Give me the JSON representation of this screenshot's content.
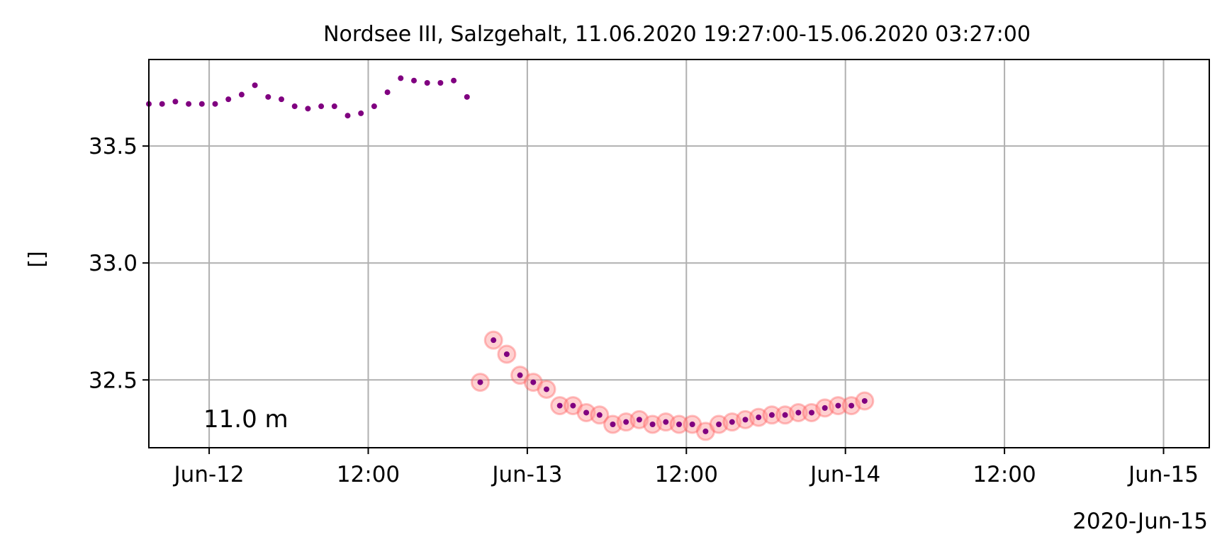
{
  "chart_data": {
    "type": "scatter",
    "title": "Nordsee III, Salzgehalt, 11.06.2020 19:27:00-15.06.2020 03:27:00",
    "ylabel": "[]",
    "xlabel": "",
    "annotation": "11.0 m",
    "x_offset_label": "2020-Jun-15",
    "xlim": [
      "2020-06-11 19:27",
      "2020-06-15 03:27"
    ],
    "ylim": [
      32.21,
      33.87
    ],
    "grid": true,
    "x_ticks": [
      {
        "t": "2020-06-12 00:00",
        "label": "Jun-12"
      },
      {
        "t": "2020-06-12 12:00",
        "label": "12:00"
      },
      {
        "t": "2020-06-13 00:00",
        "label": "Jun-13"
      },
      {
        "t": "2020-06-13 12:00",
        "label": "12:00"
      },
      {
        "t": "2020-06-14 00:00",
        "label": "Jun-14"
      },
      {
        "t": "2020-06-14 12:00",
        "label": "12:00"
      },
      {
        "t": "2020-06-15 00:00",
        "label": "Jun-15"
      }
    ],
    "y_ticks": [
      {
        "v": 32.5,
        "label": "32.5"
      },
      {
        "v": 33.0,
        "label": "33.0"
      },
      {
        "v": 33.5,
        "label": "33.5"
      }
    ],
    "colors": {
      "points": "#800080",
      "flag_fill": "#ff9999",
      "flag_stroke": "#ff4d4d",
      "grid": "#b0b0b0"
    },
    "series": [
      {
        "values": [
          {
            "x": "2020-06-11 19:27",
            "y": 33.68
          },
          {
            "x": "2020-06-11 20:27",
            "y": 33.68
          },
          {
            "x": "2020-06-11 21:27",
            "y": 33.69
          },
          {
            "x": "2020-06-11 22:27",
            "y": 33.68
          },
          {
            "x": "2020-06-11 23:27",
            "y": 33.68
          },
          {
            "x": "2020-06-12 00:27",
            "y": 33.68
          },
          {
            "x": "2020-06-12 01:27",
            "y": 33.7
          },
          {
            "x": "2020-06-12 02:27",
            "y": 33.72
          },
          {
            "x": "2020-06-12 03:27",
            "y": 33.76
          },
          {
            "x": "2020-06-12 04:27",
            "y": 33.71
          },
          {
            "x": "2020-06-12 05:27",
            "y": 33.7
          },
          {
            "x": "2020-06-12 06:27",
            "y": 33.67
          },
          {
            "x": "2020-06-12 07:27",
            "y": 33.66
          },
          {
            "x": "2020-06-12 08:27",
            "y": 33.67
          },
          {
            "x": "2020-06-12 09:27",
            "y": 33.67
          },
          {
            "x": "2020-06-12 10:27",
            "y": 33.63
          },
          {
            "x": "2020-06-12 11:27",
            "y": 33.64
          },
          {
            "x": "2020-06-12 12:27",
            "y": 33.67
          },
          {
            "x": "2020-06-12 13:27",
            "y": 33.73
          },
          {
            "x": "2020-06-12 14:27",
            "y": 33.79
          },
          {
            "x": "2020-06-12 15:27",
            "y": 33.78
          },
          {
            "x": "2020-06-12 16:27",
            "y": 33.77
          },
          {
            "x": "2020-06-12 17:27",
            "y": 33.77
          },
          {
            "x": "2020-06-12 18:27",
            "y": 33.78
          },
          {
            "x": "2020-06-12 19:27",
            "y": 33.71
          }
        ]
      },
      {
        "flagged": true,
        "values": [
          {
            "x": "2020-06-12 20:27",
            "y": 32.49
          },
          {
            "x": "2020-06-12 21:27",
            "y": 32.67
          },
          {
            "x": "2020-06-12 22:27",
            "y": 32.61
          },
          {
            "x": "2020-06-12 23:27",
            "y": 32.52
          },
          {
            "x": "2020-06-13 00:27",
            "y": 32.49
          },
          {
            "x": "2020-06-13 01:27",
            "y": 32.46
          },
          {
            "x": "2020-06-13 02:27",
            "y": 32.39
          },
          {
            "x": "2020-06-13 03:27",
            "y": 32.39
          },
          {
            "x": "2020-06-13 04:27",
            "y": 32.36
          },
          {
            "x": "2020-06-13 05:27",
            "y": 32.35
          },
          {
            "x": "2020-06-13 06:27",
            "y": 32.31
          },
          {
            "x": "2020-06-13 07:27",
            "y": 32.32
          },
          {
            "x": "2020-06-13 08:27",
            "y": 32.33
          },
          {
            "x": "2020-06-13 09:27",
            "y": 32.31
          },
          {
            "x": "2020-06-13 10:27",
            "y": 32.32
          },
          {
            "x": "2020-06-13 11:27",
            "y": 32.31
          },
          {
            "x": "2020-06-13 12:27",
            "y": 32.31
          },
          {
            "x": "2020-06-13 13:27",
            "y": 32.28
          },
          {
            "x": "2020-06-13 14:27",
            "y": 32.31
          },
          {
            "x": "2020-06-13 15:27",
            "y": 32.32
          },
          {
            "x": "2020-06-13 16:27",
            "y": 32.33
          },
          {
            "x": "2020-06-13 17:27",
            "y": 32.34
          },
          {
            "x": "2020-06-13 18:27",
            "y": 32.35
          },
          {
            "x": "2020-06-13 19:27",
            "y": 32.35
          },
          {
            "x": "2020-06-13 20:27",
            "y": 32.36
          },
          {
            "x": "2020-06-13 21:27",
            "y": 32.36
          },
          {
            "x": "2020-06-13 22:27",
            "y": 32.38
          },
          {
            "x": "2020-06-13 23:27",
            "y": 32.39
          },
          {
            "x": "2020-06-14 00:27",
            "y": 32.39
          },
          {
            "x": "2020-06-14 01:27",
            "y": 32.41
          }
        ]
      }
    ]
  }
}
